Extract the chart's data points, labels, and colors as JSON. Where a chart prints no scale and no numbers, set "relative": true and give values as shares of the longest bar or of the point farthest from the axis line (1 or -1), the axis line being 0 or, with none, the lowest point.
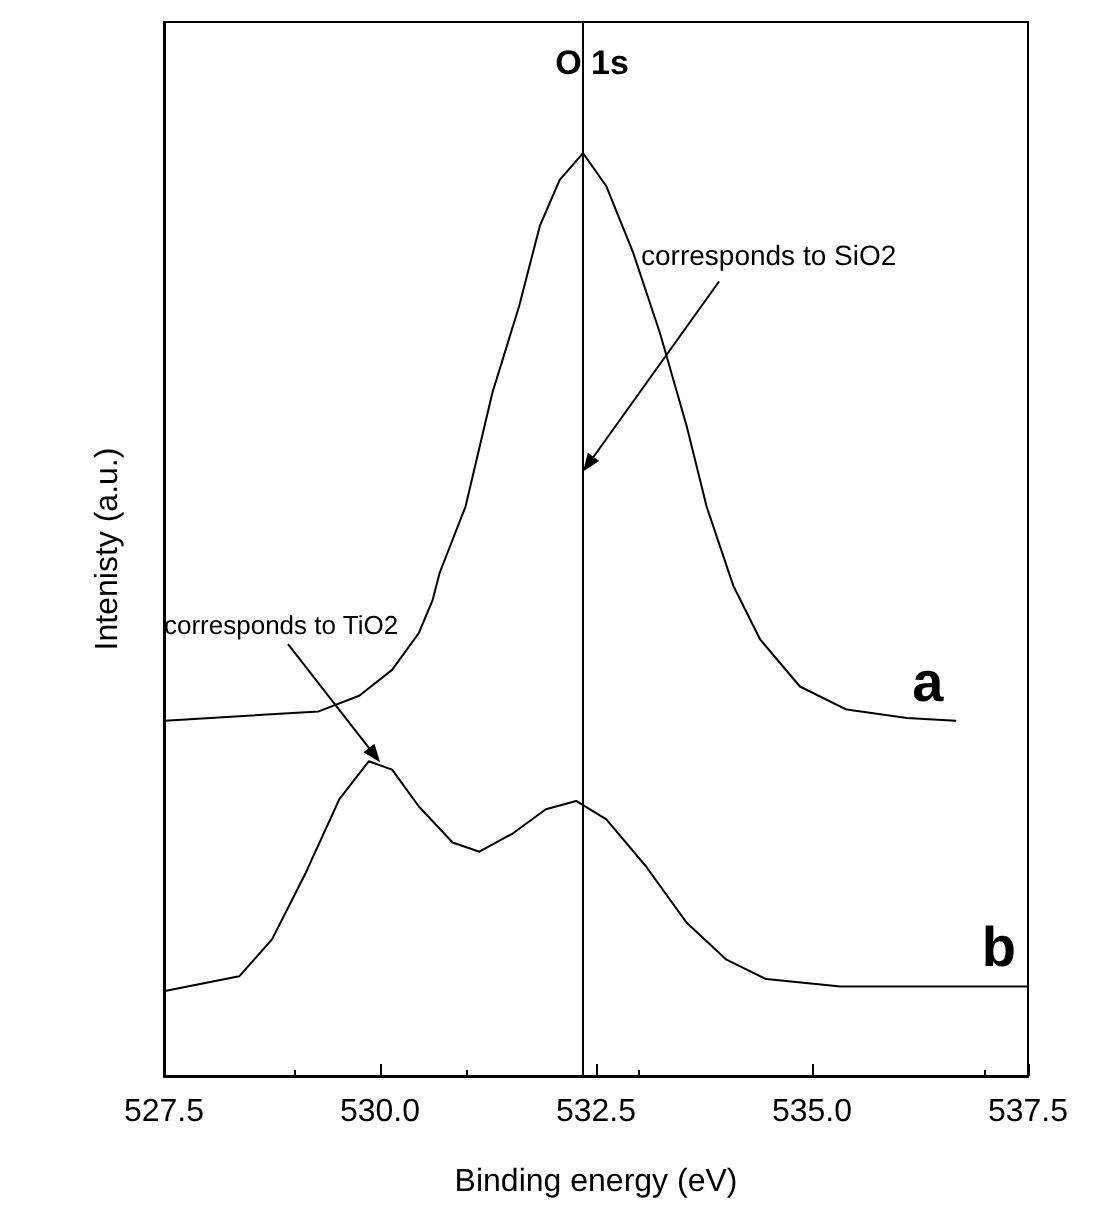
{
  "chart_data": {
    "type": "line",
    "title": "O 1s",
    "xlabel": "Binding energy (eV)",
    "ylabel": "Intenisty (a.u.)",
    "relative": true,
    "xlim": [
      527.5,
      537.5
    ],
    "xticks": [
      {
        "value": 527.5,
        "label": "527.5"
      },
      {
        "value": 530,
        "label": "530.0"
      },
      {
        "value": 532.5,
        "label": "532.5"
      },
      {
        "value": 535,
        "label": "535.0"
      },
      {
        "value": 537.5,
        "label": "537.5"
      }
    ],
    "grid": false,
    "legend": false,
    "marker": "none",
    "line_style": "solid",
    "tick_labels": "x",
    "series": [
      {
        "name": "a",
        "color": "#000000",
        "x": [
          527.51,
          529.29,
          529.76,
          530.14,
          530.45,
          530.61,
          530.69,
          530.99,
          531.3,
          531.61,
          531.85,
          532.08,
          532.35,
          532.62,
          532.93,
          533.24,
          533.55,
          533.78,
          534.09,
          534.17,
          534.4,
          534.86,
          535.4,
          536.1,
          536.66
        ],
        "values": [
          0.385,
          0.395,
          0.412,
          0.44,
          0.48,
          0.516,
          0.545,
          0.617,
          0.74,
          0.834,
          0.921,
          0.971,
          1.0,
          0.964,
          0.892,
          0.805,
          0.704,
          0.617,
          0.531,
          0.516,
          0.473,
          0.422,
          0.397,
          0.388,
          0.385
        ]
      },
      {
        "name": "b",
        "color": "#000000",
        "x": [
          527.51,
          528.37,
          528.75,
          529.14,
          529.53,
          529.87,
          530.14,
          530.45,
          530.84,
          531.15,
          531.54,
          531.92,
          532.27,
          532.62,
          533.08,
          533.55,
          534.01,
          534.47,
          535.33,
          537.5
        ],
        "values": [
          0.092,
          0.108,
          0.148,
          0.22,
          0.3,
          0.341,
          0.332,
          0.292,
          0.253,
          0.243,
          0.263,
          0.289,
          0.298,
          0.278,
          0.227,
          0.166,
          0.126,
          0.105,
          0.097,
          0.097
        ]
      }
    ],
    "ref_lines": [
      {
        "axis": "x",
        "value": 532.35,
        "color": "#000000",
        "line_style": "solid"
      }
    ],
    "annotations": [
      {
        "text": "corresponds to SiO2",
        "x": 532.35,
        "y": 0.655
      },
      {
        "text": "corresponds to TiO2",
        "x": 530.0,
        "y": 0.34
      }
    ]
  }
}
